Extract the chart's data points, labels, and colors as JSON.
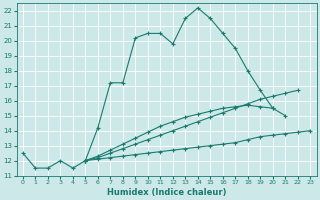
{
  "xlabel": "Humidex (Indice chaleur)",
  "bg_color": "#cce8e8",
  "grid_color": "#ffffff",
  "line_color": "#1a7a6e",
  "xlim": [
    -0.5,
    23.5
  ],
  "ylim": [
    11,
    22.5
  ],
  "xticks": [
    0,
    1,
    2,
    3,
    4,
    5,
    6,
    7,
    8,
    9,
    10,
    11,
    12,
    13,
    14,
    15,
    16,
    17,
    18,
    19,
    20,
    21,
    22,
    23
  ],
  "yticks": [
    11,
    12,
    13,
    14,
    15,
    16,
    17,
    18,
    19,
    20,
    21,
    22
  ],
  "line1_x": [
    0,
    1,
    2,
    3,
    4,
    5,
    6,
    7,
    8,
    9,
    10,
    11,
    12,
    13,
    14,
    15,
    16,
    17,
    18,
    19,
    20,
    21
  ],
  "line1_y": [
    12.5,
    11.5,
    11.5,
    12.0,
    11.5,
    12.0,
    14.2,
    17.2,
    17.2,
    20.2,
    20.5,
    20.5,
    19.8,
    21.5,
    22.2,
    21.5,
    20.5,
    19.5,
    18.0,
    16.7,
    15.5,
    15.0
  ],
  "line2_x": [
    5,
    23
  ],
  "line2_y": [
    12.0,
    14.0
  ],
  "line3_x": [
    5,
    22
  ],
  "line3_y": [
    12.0,
    16.7
  ],
  "line4_x": [
    5,
    20
  ],
  "line4_y": [
    12.0,
    15.5
  ],
  "marker_line2_x": [
    5,
    6,
    7,
    8,
    9,
    10,
    11,
    12,
    13,
    14,
    15,
    16,
    17,
    18,
    19,
    20,
    21,
    22,
    23
  ],
  "marker_line2_y": [
    12.0,
    12.1,
    12.2,
    12.3,
    12.4,
    12.5,
    12.6,
    12.7,
    12.8,
    12.9,
    13.0,
    13.1,
    13.2,
    13.4,
    13.6,
    13.7,
    13.8,
    13.9,
    14.0
  ],
  "marker_line3_x": [
    5,
    6,
    7,
    8,
    9,
    10,
    11,
    12,
    13,
    14,
    15,
    16,
    17,
    18,
    19,
    20,
    21,
    22
  ],
  "marker_line3_y": [
    12.0,
    12.2,
    12.5,
    12.8,
    13.1,
    13.4,
    13.7,
    14.0,
    14.3,
    14.6,
    14.9,
    15.2,
    15.5,
    15.8,
    16.1,
    16.3,
    16.5,
    16.7
  ],
  "marker_line4_x": [
    5,
    6,
    7,
    8,
    9,
    10,
    11,
    12,
    13,
    14,
    15,
    16,
    17,
    18,
    19,
    20
  ],
  "marker_line4_y": [
    12.0,
    12.3,
    12.7,
    13.1,
    13.5,
    13.9,
    14.3,
    14.6,
    14.9,
    15.1,
    15.3,
    15.5,
    15.6,
    15.7,
    15.6,
    15.5
  ]
}
